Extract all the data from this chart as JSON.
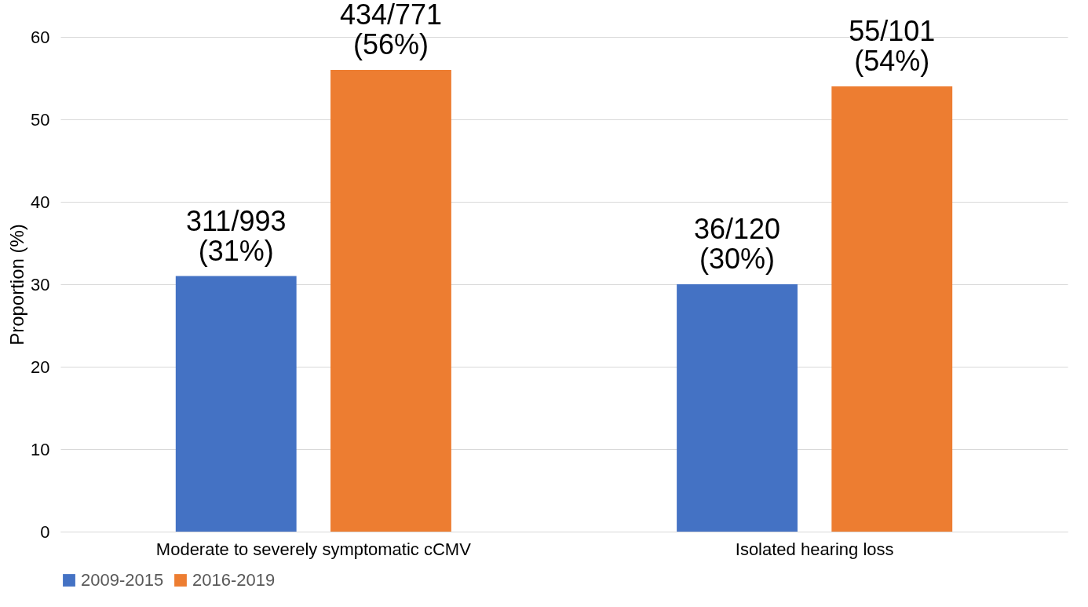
{
  "chart_data": {
    "type": "bar",
    "ylabel": "Proportion (%)",
    "categories": [
      "Moderate to severely symptomatic cCMV",
      "Isolated hearing loss"
    ],
    "series": [
      {
        "name": "2009-2015",
        "color": "#4472c4",
        "values": [
          31,
          30
        ],
        "value_labels": [
          "311/993\n(31%)",
          "36/120\n(30%)"
        ]
      },
      {
        "name": "2016-2019",
        "color": "#ed7d31",
        "values": [
          56,
          54
        ],
        "value_labels": [
          "434/771\n(56%)",
          "55/101\n(54%)"
        ]
      }
    ],
    "ylim": [
      0,
      60
    ],
    "yticks": [
      0,
      10,
      20,
      30,
      40,
      50,
      60
    ],
    "grid": "y",
    "legend": "bottom"
  }
}
